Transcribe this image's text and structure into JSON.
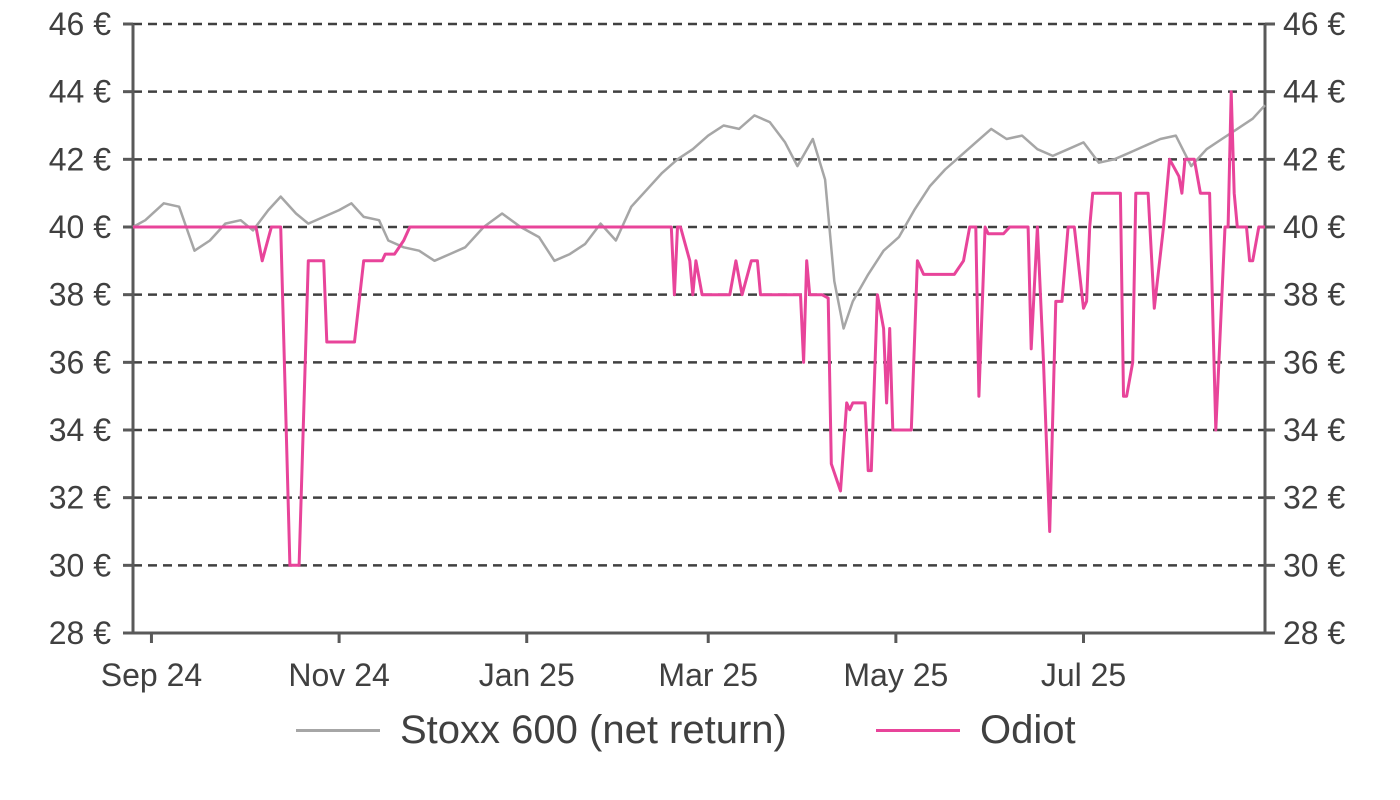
{
  "chart_data": {
    "type": "line",
    "title": "",
    "xlabel": "",
    "ylabel": "",
    "y_unit_suffix": " €",
    "ylim": [
      28,
      46
    ],
    "y_ticks": [
      28,
      30,
      32,
      34,
      36,
      38,
      40,
      42,
      44,
      46
    ],
    "y_tick_labels": [
      "28 €",
      "30 €",
      "32 €",
      "34 €",
      "36 €",
      "38 €",
      "40 €",
      "42 €",
      "44 €",
      "46 €"
    ],
    "dual_y_axis": true,
    "grid": "horizontal dashed",
    "x_range": [
      "2024-08-26",
      "2025-08-29"
    ],
    "x_ticks": [
      {
        "date": "2024-09-01",
        "label": "Sep 24"
      },
      {
        "date": "2024-11-01",
        "label": "Nov 24"
      },
      {
        "date": "2025-01-01",
        "label": "Jan 25"
      },
      {
        "date": "2025-03-01",
        "label": "Mar 25"
      },
      {
        "date": "2025-05-01",
        "label": "May 25"
      },
      {
        "date": "2025-07-01",
        "label": "Jul 25"
      }
    ],
    "legend_position": "bottom",
    "series": [
      {
        "name": "Stoxx 600 (net return)",
        "color": "#a6a6a6",
        "points": [
          [
            "2024-08-26",
            40.0
          ],
          [
            "2024-08-30",
            40.2
          ],
          [
            "2024-09-05",
            40.7
          ],
          [
            "2024-09-10",
            40.6
          ],
          [
            "2024-09-15",
            39.3
          ],
          [
            "2024-09-20",
            39.6
          ],
          [
            "2024-09-25",
            40.1
          ],
          [
            "2024-09-30",
            40.2
          ],
          [
            "2024-10-04",
            39.9
          ],
          [
            "2024-10-09",
            40.5
          ],
          [
            "2024-10-13",
            40.9
          ],
          [
            "2024-10-18",
            40.4
          ],
          [
            "2024-10-22",
            40.1
          ],
          [
            "2024-10-27",
            40.3
          ],
          [
            "2024-11-01",
            40.5
          ],
          [
            "2024-11-05",
            40.7
          ],
          [
            "2024-11-09",
            40.3
          ],
          [
            "2024-11-14",
            40.2
          ],
          [
            "2024-11-17",
            39.6
          ],
          [
            "2024-11-22",
            39.4
          ],
          [
            "2024-11-27",
            39.3
          ],
          [
            "2024-12-02",
            39.0
          ],
          [
            "2024-12-07",
            39.2
          ],
          [
            "2024-12-12",
            39.4
          ],
          [
            "2024-12-18",
            40.0
          ],
          [
            "2024-12-24",
            40.4
          ],
          [
            "2024-12-30",
            40.0
          ],
          [
            "2025-01-05",
            39.7
          ],
          [
            "2025-01-10",
            39.0
          ],
          [
            "2025-01-15",
            39.2
          ],
          [
            "2025-01-20",
            39.5
          ],
          [
            "2025-01-25",
            40.1
          ],
          [
            "2025-01-30",
            39.6
          ],
          [
            "2025-02-04",
            40.6
          ],
          [
            "2025-02-09",
            41.1
          ],
          [
            "2025-02-14",
            41.6
          ],
          [
            "2025-02-19",
            42.0
          ],
          [
            "2025-02-24",
            42.3
          ],
          [
            "2025-03-01",
            42.7
          ],
          [
            "2025-03-06",
            43.0
          ],
          [
            "2025-03-11",
            42.9
          ],
          [
            "2025-03-16",
            43.3
          ],
          [
            "2025-03-21",
            43.1
          ],
          [
            "2025-03-26",
            42.5
          ],
          [
            "2025-03-30",
            41.8
          ],
          [
            "2025-04-04",
            42.6
          ],
          [
            "2025-04-08",
            41.4
          ],
          [
            "2025-04-11",
            38.4
          ],
          [
            "2025-04-14",
            37.0
          ],
          [
            "2025-04-17",
            37.8
          ],
          [
            "2025-04-22",
            38.6
          ],
          [
            "2025-04-27",
            39.3
          ],
          [
            "2025-05-02",
            39.7
          ],
          [
            "2025-05-07",
            40.5
          ],
          [
            "2025-05-12",
            41.2
          ],
          [
            "2025-05-17",
            41.7
          ],
          [
            "2025-05-22",
            42.1
          ],
          [
            "2025-05-27",
            42.5
          ],
          [
            "2025-06-01",
            42.9
          ],
          [
            "2025-06-06",
            42.6
          ],
          [
            "2025-06-11",
            42.7
          ],
          [
            "2025-06-16",
            42.3
          ],
          [
            "2025-06-21",
            42.1
          ],
          [
            "2025-06-26",
            42.3
          ],
          [
            "2025-07-01",
            42.5
          ],
          [
            "2025-07-06",
            41.9
          ],
          [
            "2025-07-11",
            42.0
          ],
          [
            "2025-07-16",
            42.2
          ],
          [
            "2025-07-21",
            42.4
          ],
          [
            "2025-07-26",
            42.6
          ],
          [
            "2025-07-31",
            42.7
          ],
          [
            "2025-08-05",
            41.8
          ],
          [
            "2025-08-10",
            42.3
          ],
          [
            "2025-08-15",
            42.6
          ],
          [
            "2025-08-20",
            42.9
          ],
          [
            "2025-08-25",
            43.2
          ],
          [
            "2025-08-29",
            43.6
          ]
        ]
      },
      {
        "name": "Odiot",
        "color": "#e8449a",
        "points": [
          [
            "2024-08-26",
            40
          ],
          [
            "2024-09-28",
            40
          ],
          [
            "2024-10-05",
            40
          ],
          [
            "2024-10-07",
            39
          ],
          [
            "2024-10-10",
            40
          ],
          [
            "2024-10-12",
            40
          ],
          [
            "2024-10-13",
            40
          ],
          [
            "2024-10-16",
            30
          ],
          [
            "2024-10-19",
            30
          ],
          [
            "2024-10-22",
            39
          ],
          [
            "2024-10-27",
            39
          ],
          [
            "2024-10-28",
            36.6
          ],
          [
            "2024-11-06",
            36.6
          ],
          [
            "2024-11-09",
            39
          ],
          [
            "2024-11-15",
            39
          ],
          [
            "2024-11-16",
            39.2
          ],
          [
            "2024-11-19",
            39.2
          ],
          [
            "2024-11-22",
            39.6
          ],
          [
            "2024-11-24",
            40
          ],
          [
            "2024-12-15",
            40
          ],
          [
            "2025-02-17",
            40
          ],
          [
            "2025-02-18",
            38
          ],
          [
            "2025-02-19",
            40
          ],
          [
            "2025-02-20",
            40
          ],
          [
            "2025-02-23",
            39
          ],
          [
            "2025-02-24",
            38
          ],
          [
            "2025-02-25",
            39
          ],
          [
            "2025-02-27",
            38
          ],
          [
            "2025-03-05",
            38
          ],
          [
            "2025-03-08",
            38
          ],
          [
            "2025-03-10",
            39
          ],
          [
            "2025-03-12",
            38
          ],
          [
            "2025-03-15",
            39
          ],
          [
            "2025-03-17",
            39
          ],
          [
            "2025-03-18",
            38
          ],
          [
            "2025-03-24",
            38
          ],
          [
            "2025-03-28",
            38
          ],
          [
            "2025-03-31",
            38
          ],
          [
            "2025-04-01",
            36
          ],
          [
            "2025-04-02",
            39
          ],
          [
            "2025-04-03",
            38
          ],
          [
            "2025-04-07",
            38
          ],
          [
            "2025-04-09",
            37.9
          ],
          [
            "2025-04-10",
            33
          ],
          [
            "2025-04-13",
            32.2
          ],
          [
            "2025-04-15",
            34.8
          ],
          [
            "2025-04-16",
            34.6
          ],
          [
            "2025-04-17",
            34.8
          ],
          [
            "2025-04-21",
            34.8
          ],
          [
            "2025-04-22",
            32.8
          ],
          [
            "2025-04-23",
            32.8
          ],
          [
            "2025-04-25",
            38
          ],
          [
            "2025-04-27",
            37
          ],
          [
            "2025-04-28",
            34.8
          ],
          [
            "2025-04-29",
            37
          ],
          [
            "2025-04-30",
            34
          ],
          [
            "2025-05-03",
            34
          ],
          [
            "2025-05-06",
            34
          ],
          [
            "2025-05-08",
            39
          ],
          [
            "2025-05-10",
            38.6
          ],
          [
            "2025-05-18",
            38.6
          ],
          [
            "2025-05-20",
            38.6
          ],
          [
            "2025-05-23",
            39
          ],
          [
            "2025-05-25",
            40
          ],
          [
            "2025-05-27",
            40
          ],
          [
            "2025-05-28",
            35
          ],
          [
            "2025-05-30",
            40
          ],
          [
            "2025-05-31",
            39.8
          ],
          [
            "2025-06-05",
            39.8
          ],
          [
            "2025-06-07",
            40
          ],
          [
            "2025-06-13",
            40
          ],
          [
            "2025-06-14",
            36.4
          ],
          [
            "2025-06-16",
            40
          ],
          [
            "2025-06-18",
            36
          ],
          [
            "2025-06-20",
            31
          ],
          [
            "2025-06-22",
            37.8
          ],
          [
            "2025-06-24",
            37.8
          ],
          [
            "2025-06-26",
            40
          ],
          [
            "2025-06-28",
            40
          ],
          [
            "2025-07-01",
            37.6
          ],
          [
            "2025-07-02",
            37.8
          ],
          [
            "2025-07-03",
            40
          ],
          [
            "2025-07-04",
            41
          ],
          [
            "2025-07-10",
            41
          ],
          [
            "2025-07-13",
            41
          ],
          [
            "2025-07-14",
            35
          ],
          [
            "2025-07-15",
            35
          ],
          [
            "2025-07-17",
            36
          ],
          [
            "2025-07-18",
            41
          ],
          [
            "2025-07-22",
            41
          ],
          [
            "2025-07-24",
            37.6
          ],
          [
            "2025-07-27",
            40
          ],
          [
            "2025-07-29",
            42
          ],
          [
            "2025-08-01",
            41.5
          ],
          [
            "2025-08-02",
            41
          ],
          [
            "2025-08-03",
            42
          ],
          [
            "2025-08-06",
            42
          ],
          [
            "2025-08-08",
            41
          ],
          [
            "2025-08-11",
            41
          ],
          [
            "2025-08-13",
            34
          ],
          [
            "2025-08-16",
            40
          ],
          [
            "2025-08-17",
            40
          ],
          [
            "2025-08-18",
            44
          ],
          [
            "2025-08-19",
            41
          ],
          [
            "2025-08-20",
            40
          ],
          [
            "2025-08-23",
            40
          ],
          [
            "2025-08-24",
            39
          ],
          [
            "2025-08-25",
            39
          ],
          [
            "2025-08-27",
            40
          ],
          [
            "2025-08-28",
            40
          ],
          [
            "2025-08-29",
            40
          ]
        ]
      }
    ]
  }
}
